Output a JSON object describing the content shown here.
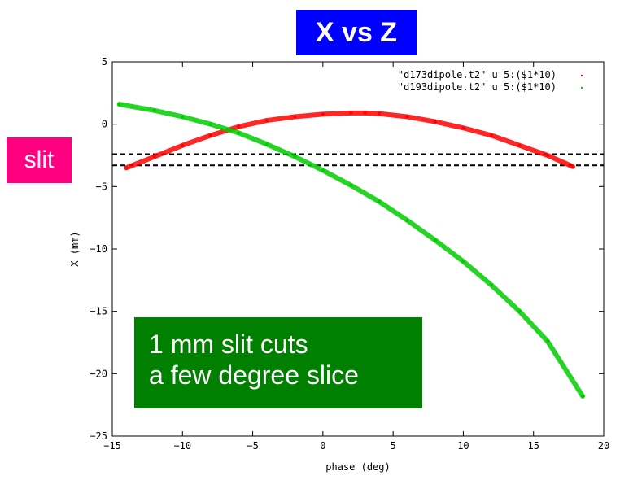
{
  "title": "X vs Z",
  "slit_label": "slit",
  "annotation": {
    "line1": "1 mm slit cuts",
    "line2": "a few degree slice"
  },
  "colors": {
    "title_bg": "#0000ff",
    "slit_bg": "#ff0080",
    "annotation_bg": "#007f00",
    "series_red": "#ff0000",
    "series_green": "#00cc00"
  },
  "chart_data": {
    "type": "scatter",
    "xlabel": "phase (deg)",
    "ylabel": "X (mm)",
    "xlim": [
      -15,
      20
    ],
    "ylim": [
      -25,
      5
    ],
    "x_ticks": [
      -15,
      -10,
      -5,
      0,
      5,
      10,
      15,
      20
    ],
    "y_ticks": [
      -25,
      -20,
      -15,
      -10,
      -5,
      0,
      5
    ],
    "legend_position": "top-right",
    "series": [
      {
        "name": "\"d173dipole.t2\" u 5:($1*10)",
        "color": "#ff0000",
        "x": [
          -14,
          -12,
          -10,
          -8,
          -6,
          -4,
          -2,
          0,
          2,
          3,
          4,
          6,
          8,
          10,
          12,
          14,
          16,
          17.8
        ],
        "y": [
          -3.5,
          -2.6,
          -1.7,
          -0.9,
          -0.2,
          0.3,
          0.6,
          0.8,
          0.9,
          0.9,
          0.85,
          0.6,
          0.2,
          -0.3,
          -0.9,
          -1.7,
          -2.5,
          -3.4
        ]
      },
      {
        "name": "\"d193dipole.t2\" u 5:($1*10)",
        "color": "#00cc00",
        "x": [
          -14.5,
          -12,
          -10,
          -8,
          -6,
          -4,
          -2,
          0,
          2,
          4,
          6,
          8,
          10,
          12,
          14,
          16,
          18.5
        ],
        "y": [
          1.6,
          1.1,
          0.6,
          0.0,
          -0.7,
          -1.6,
          -2.6,
          -3.7,
          -4.9,
          -6.2,
          -7.7,
          -9.3,
          -11.0,
          -12.9,
          -15.0,
          -17.4,
          -21.8
        ]
      }
    ],
    "slit_lines_y": [
      -2.4,
      -3.3
    ]
  }
}
